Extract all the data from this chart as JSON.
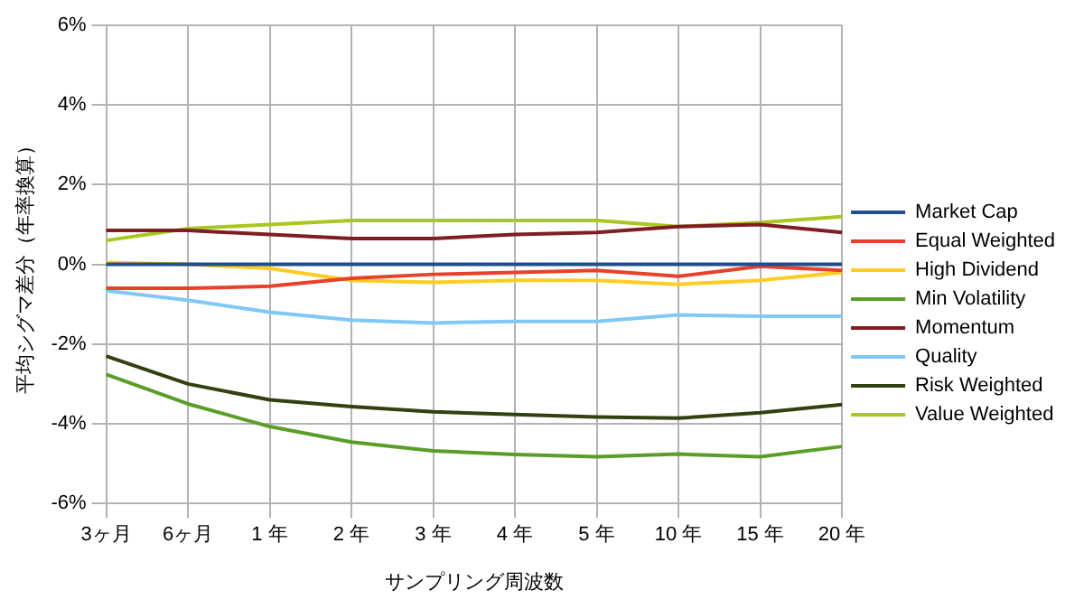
{
  "chart_data": {
    "type": "line",
    "xlabel": "サンプリング周波数",
    "ylabel": "平均シグマ差分（年率換算）",
    "categories": [
      "3ヶ月",
      "6ヶ月",
      "1 年",
      "2 年",
      "3 年",
      "4 年",
      "5 年",
      "10 年",
      "15 年",
      "20 年"
    ],
    "series": [
      {
        "name": "Market Cap",
        "color": "#1f4e8c",
        "values": [
          0,
          0,
          0,
          0,
          0,
          0,
          0,
          0,
          0,
          0
        ]
      },
      {
        "name": "Equal Weighted",
        "color": "#e8412b",
        "values": [
          -0.6,
          -0.6,
          -0.55,
          -0.35,
          -0.25,
          -0.2,
          -0.15,
          -0.3,
          -0.05,
          -0.15
        ]
      },
      {
        "name": "High Dividend",
        "color": "#ffcc22",
        "values": [
          0.05,
          0,
          -0.1,
          -0.4,
          -0.45,
          -0.4,
          -0.4,
          -0.5,
          -0.4,
          -0.2
        ]
      },
      {
        "name": "Min Volatility",
        "color": "#5a9e28",
        "values": [
          -2.76,
          -3.5,
          -4.07,
          -4.46,
          -4.68,
          -4.77,
          -4.83,
          -4.76,
          -4.83,
          -4.57
        ]
      },
      {
        "name": "Momentum",
        "color": "#7f1d24",
        "values": [
          0.85,
          0.85,
          0.75,
          0.65,
          0.65,
          0.75,
          0.8,
          0.95,
          1.0,
          0.8
        ]
      },
      {
        "name": "Quality",
        "color": "#7fc8f8",
        "values": [
          -0.66,
          -0.9,
          -1.2,
          -1.4,
          -1.47,
          -1.43,
          -1.43,
          -1.27,
          -1.3,
          -1.3
        ]
      },
      {
        "name": "Risk Weighted",
        "color": "#334010",
        "values": [
          -2.3,
          -3.0,
          -3.4,
          -3.57,
          -3.7,
          -3.77,
          -3.83,
          -3.86,
          -3.72,
          -3.52
        ]
      },
      {
        "name": "Value Weighted",
        "color": "#a8c820",
        "values": [
          0.6,
          0.9,
          1.0,
          1.1,
          1.1,
          1.1,
          1.1,
          0.95,
          1.05,
          1.2
        ]
      }
    ],
    "ylim": [
      -6,
      6
    ],
    "yticks": [
      {
        "value": -6,
        "label": "-6%"
      },
      {
        "value": -4,
        "label": "-4%"
      },
      {
        "value": -2,
        "label": "-2%"
      },
      {
        "value": 0,
        "label": "0%"
      },
      {
        "value": 2,
        "label": "2%"
      },
      {
        "value": 4,
        "label": "4%"
      },
      {
        "value": 6,
        "label": "6%"
      }
    ],
    "grid": true,
    "legend": "right",
    "marker": "none",
    "line_style": "solid"
  }
}
